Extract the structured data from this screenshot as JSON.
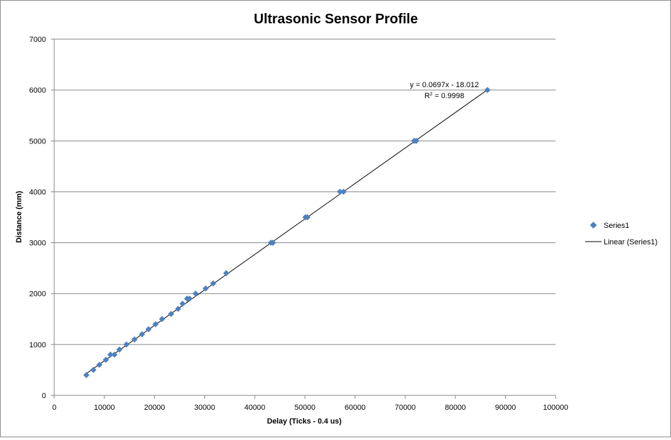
{
  "chart_data": {
    "type": "scatter",
    "title": "Ultrasonic Sensor Profile",
    "xlabel": "Delay (Ticks  - 0.4 us)",
    "ylabel": "Distance  (mm)",
    "xlim": [
      0,
      100000
    ],
    "ylim": [
      0,
      7000
    ],
    "x_ticks": [
      0,
      10000,
      20000,
      30000,
      40000,
      50000,
      60000,
      70000,
      80000,
      90000,
      100000
    ],
    "y_ticks": [
      0,
      1000,
      2000,
      3000,
      4000,
      5000,
      6000,
      7000
    ],
    "x_tick_labels": [
      "0",
      "10000",
      "20000",
      "30000",
      "40000",
      "50000",
      "60000",
      "70000",
      "80000",
      "90000",
      "100000"
    ],
    "y_tick_labels": [
      "0",
      "1000",
      "2000",
      "3000",
      "4000",
      "5000",
      "6000",
      "7000"
    ],
    "grid": "horizontal",
    "legend_position": "right",
    "series": [
      {
        "name": "Series1",
        "marker": "diamond",
        "color": "#4f81bd",
        "points": [
          [
            6400,
            400
          ],
          [
            7800,
            500
          ],
          [
            9000,
            600
          ],
          [
            10300,
            700
          ],
          [
            11200,
            800
          ],
          [
            12000,
            800
          ],
          [
            13000,
            900
          ],
          [
            14400,
            1000
          ],
          [
            16000,
            1100
          ],
          [
            17500,
            1200
          ],
          [
            18800,
            1300
          ],
          [
            20200,
            1400
          ],
          [
            21500,
            1500
          ],
          [
            23300,
            1600
          ],
          [
            24700,
            1700
          ],
          [
            25600,
            1800
          ],
          [
            26500,
            1900
          ],
          [
            27000,
            1900
          ],
          [
            28200,
            2000
          ],
          [
            30200,
            2100
          ],
          [
            31700,
            2200
          ],
          [
            34300,
            2400
          ],
          [
            43200,
            3000
          ],
          [
            43600,
            3000
          ],
          [
            50100,
            3500
          ],
          [
            50500,
            3500
          ],
          [
            57000,
            4000
          ],
          [
            57700,
            4000
          ],
          [
            71800,
            5000
          ],
          [
            72200,
            5000
          ],
          [
            86400,
            6000
          ]
        ]
      }
    ],
    "trendline": {
      "name": "Linear (Series1)",
      "type": "linear",
      "slope": 0.0697,
      "intercept": -18.012,
      "x_range": [
        6400,
        86400
      ],
      "color": "#000000",
      "equation_text": "y = 0.0697x - 18.012",
      "r2_prefix": "R",
      "r2_sup": "2",
      "r2_value": " = 0.9998"
    }
  }
}
